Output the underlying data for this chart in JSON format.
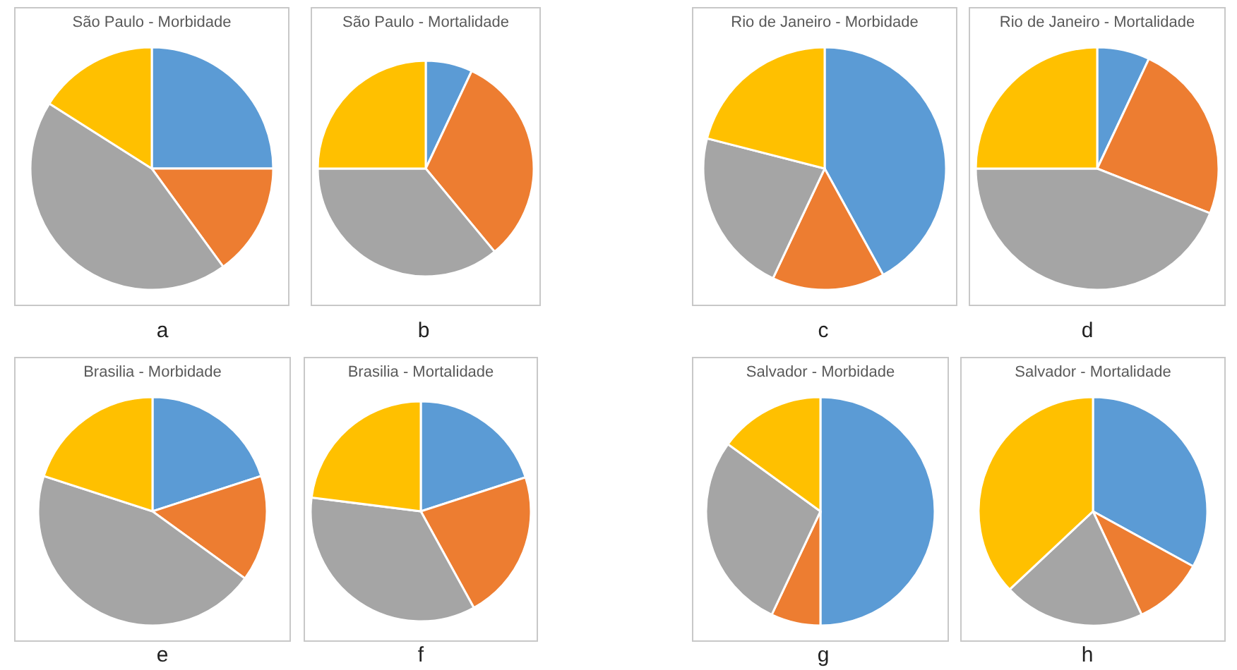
{
  "chart_data": [
    {
      "type": "pie",
      "title": "São Paulo - Morbidade",
      "categories": [
        null,
        null,
        null,
        null
      ],
      "values": [
        25,
        15,
        44,
        16
      ],
      "colors": [
        "#5b9bd5",
        "#ed7d31",
        "#a5a5a5",
        "#ffc000"
      ],
      "annotations": [
        "a"
      ]
    },
    {
      "type": "pie",
      "title": "São Paulo - Mortalidade",
      "categories": [
        null,
        null,
        null,
        null
      ],
      "values": [
        7,
        32,
        36,
        25
      ],
      "colors": [
        "#5b9bd5",
        "#ed7d31",
        "#a5a5a5",
        "#ffc000"
      ],
      "annotations": [
        "b"
      ]
    },
    {
      "type": "pie",
      "title": "Rio de Janeiro - Morbidade",
      "categories": [
        null,
        null,
        null,
        null
      ],
      "values": [
        42,
        15,
        22,
        21
      ],
      "colors": [
        "#5b9bd5",
        "#ed7d31",
        "#a5a5a5",
        "#ffc000"
      ],
      "annotations": [
        "c"
      ]
    },
    {
      "type": "pie",
      "title": "Rio de Janeiro - Mortalidade",
      "categories": [
        null,
        null,
        null,
        null
      ],
      "values": [
        7,
        24,
        44,
        25
      ],
      "colors": [
        "#5b9bd5",
        "#ed7d31",
        "#a5a5a5",
        "#ffc000"
      ],
      "annotations": [
        "d"
      ]
    },
    {
      "type": "pie",
      "title": "Brasilia - Morbidade",
      "categories": [
        null,
        null,
        null,
        null
      ],
      "values": [
        20,
        15,
        45,
        20
      ],
      "colors": [
        "#5b9bd5",
        "#ed7d31",
        "#a5a5a5",
        "#ffc000"
      ],
      "annotations": [
        "e"
      ]
    },
    {
      "type": "pie",
      "title": "Brasilia - Mortalidade",
      "categories": [
        null,
        null,
        null,
        null
      ],
      "values": [
        20,
        22,
        35,
        23
      ],
      "colors": [
        "#5b9bd5",
        "#ed7d31",
        "#a5a5a5",
        "#ffc000"
      ],
      "annotations": [
        "f"
      ]
    },
    {
      "type": "pie",
      "title": "Salvador - Morbidade",
      "categories": [
        null,
        null,
        null,
        null
      ],
      "values": [
        50,
        7,
        28,
        15
      ],
      "colors": [
        "#5b9bd5",
        "#ed7d31",
        "#a5a5a5",
        "#ffc000"
      ],
      "annotations": [
        "g"
      ]
    },
    {
      "type": "pie",
      "title": "Salvador - Mortalidade",
      "categories": [
        null,
        null,
        null,
        null
      ],
      "values": [
        33,
        10,
        20,
        37
      ],
      "colors": [
        "#5b9bd5",
        "#ed7d31",
        "#a5a5a5",
        "#ffc000"
      ],
      "annotations": [
        "h"
      ]
    }
  ]
}
